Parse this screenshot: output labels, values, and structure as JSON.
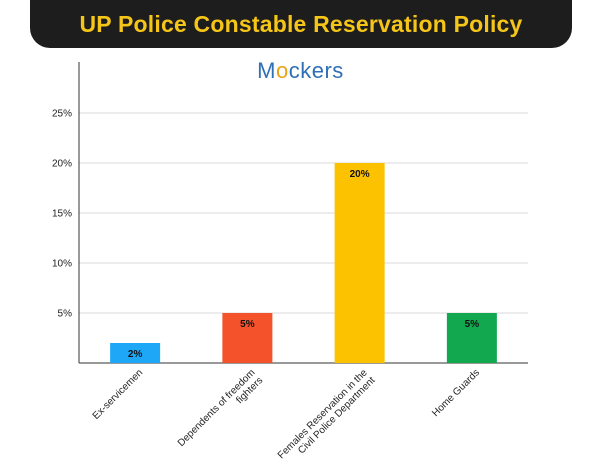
{
  "header": {
    "title": "UP Police Constable Reservation Policy"
  },
  "logo": {
    "text_before": "M",
    "text_ring": "o",
    "text_after": "ckers"
  },
  "chart_data": {
    "type": "bar",
    "categories": [
      "Ex-servicemen",
      "Dependents of freedom fighters",
      "Females Reservation in the Civil Police Department",
      "Home Guards"
    ],
    "values": [
      2,
      5,
      20,
      5
    ],
    "data_labels": [
      "2%",
      "5%",
      "20%",
      "5%"
    ],
    "colors": [
      "#1ea7f7",
      "#f4522b",
      "#fcc200",
      "#12a84f"
    ],
    "yticks": [
      5,
      10,
      15,
      20,
      25
    ],
    "ytick_labels": [
      "5%",
      "10%",
      "15%",
      "20%",
      "25%"
    ],
    "ylim": [
      0,
      30
    ],
    "grid": true,
    "legend": "none"
  }
}
